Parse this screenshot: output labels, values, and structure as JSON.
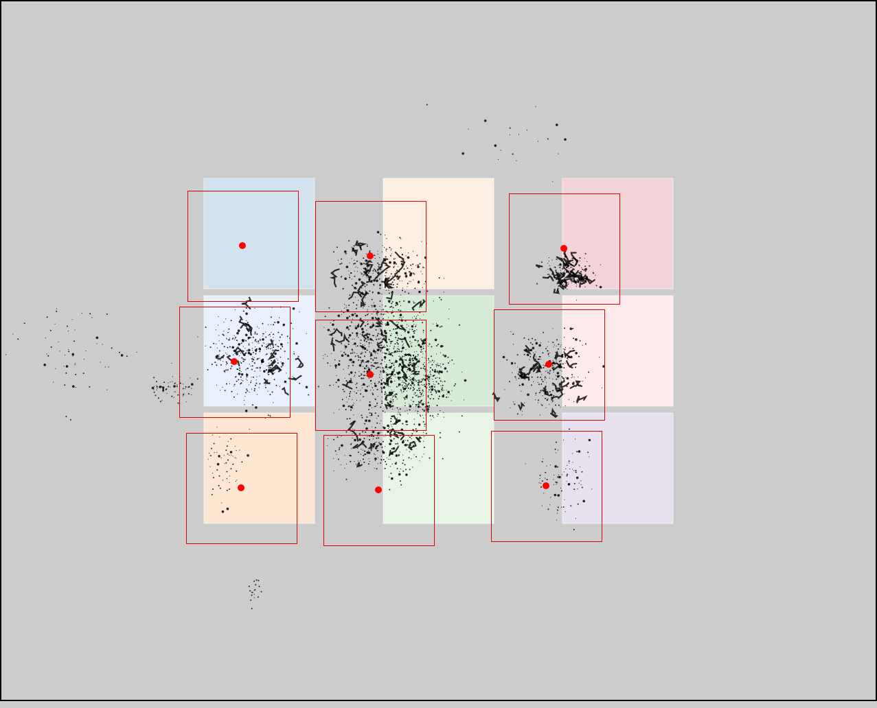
{
  "canvas": {
    "background": "#cccccc",
    "frame_color": "#000000"
  },
  "colors": {
    "box_stroke": "#e00000",
    "center_marker": "#ff0000",
    "scatter": "#000000"
  },
  "grid_tiles": [
    {
      "id": "r1c1",
      "color": "#d2e3ef"
    },
    {
      "id": "r1c2",
      "color": "#fcefe2"
    },
    {
      "id": "r1c3",
      "color": "#f2d3d8"
    },
    {
      "id": "r2c1",
      "color": "#eaf0fb"
    },
    {
      "id": "r2c2",
      "color": "#d6ebd6"
    },
    {
      "id": "r2c3",
      "color": "#fdeaea"
    },
    {
      "id": "r3c1",
      "color": "#fde6d2"
    },
    {
      "id": "r3c2",
      "color": "#e7f5e4"
    },
    {
      "id": "r3c3",
      "color": "#e7e0ef"
    }
  ],
  "detection_boxes": [
    {
      "id": "box-1"
    },
    {
      "id": "box-2"
    },
    {
      "id": "box-3"
    },
    {
      "id": "box-4"
    },
    {
      "id": "box-5"
    },
    {
      "id": "box-6"
    },
    {
      "id": "box-7"
    },
    {
      "id": "box-8"
    },
    {
      "id": "box-9"
    }
  ]
}
